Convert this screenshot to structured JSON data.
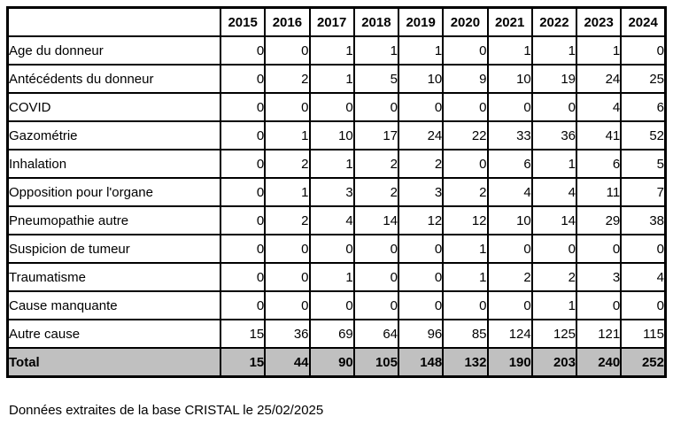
{
  "table": {
    "corner_label": "",
    "years": [
      "2015",
      "2016",
      "2017",
      "2018",
      "2019",
      "2020",
      "2021",
      "2022",
      "2023",
      "2024"
    ],
    "rows": [
      {
        "label": "Age du donneur",
        "values": [
          0,
          0,
          1,
          1,
          1,
          0,
          1,
          1,
          1,
          0
        ]
      },
      {
        "label": "Antécédents du donneur",
        "values": [
          0,
          2,
          1,
          5,
          10,
          9,
          10,
          19,
          24,
          25
        ]
      },
      {
        "label": "COVID",
        "values": [
          0,
          0,
          0,
          0,
          0,
          0,
          0,
          0,
          4,
          6
        ]
      },
      {
        "label": "Gazométrie",
        "values": [
          0,
          1,
          10,
          17,
          24,
          22,
          33,
          36,
          41,
          52
        ]
      },
      {
        "label": "Inhalation",
        "values": [
          0,
          2,
          1,
          2,
          2,
          0,
          6,
          1,
          6,
          5
        ]
      },
      {
        "label": "Opposition pour l'organe",
        "values": [
          0,
          1,
          3,
          2,
          3,
          2,
          4,
          4,
          11,
          7
        ]
      },
      {
        "label": "Pneumopathie autre",
        "values": [
          0,
          2,
          4,
          14,
          12,
          12,
          10,
          14,
          29,
          38
        ]
      },
      {
        "label": "Suspicion de tumeur",
        "values": [
          0,
          0,
          0,
          0,
          0,
          1,
          0,
          0,
          0,
          0
        ]
      },
      {
        "label": "Traumatisme",
        "values": [
          0,
          0,
          1,
          0,
          0,
          1,
          2,
          2,
          3,
          4
        ]
      },
      {
        "label": "Cause manquante",
        "values": [
          0,
          0,
          0,
          0,
          0,
          0,
          0,
          1,
          0,
          0
        ]
      },
      {
        "label": "Autre cause",
        "values": [
          15,
          36,
          69,
          64,
          96,
          85,
          124,
          125,
          121,
          115
        ]
      }
    ],
    "total": {
      "label": "Total",
      "values": [
        15,
        44,
        90,
        105,
        148,
        132,
        190,
        203,
        240,
        252
      ]
    }
  },
  "footer": {
    "note": "Données extraites de la base CRISTAL le 25/02/2025"
  },
  "colors": {
    "border": "#000000",
    "total_row_bg": "#c0c0c0",
    "page_bg": "#ffffff"
  }
}
